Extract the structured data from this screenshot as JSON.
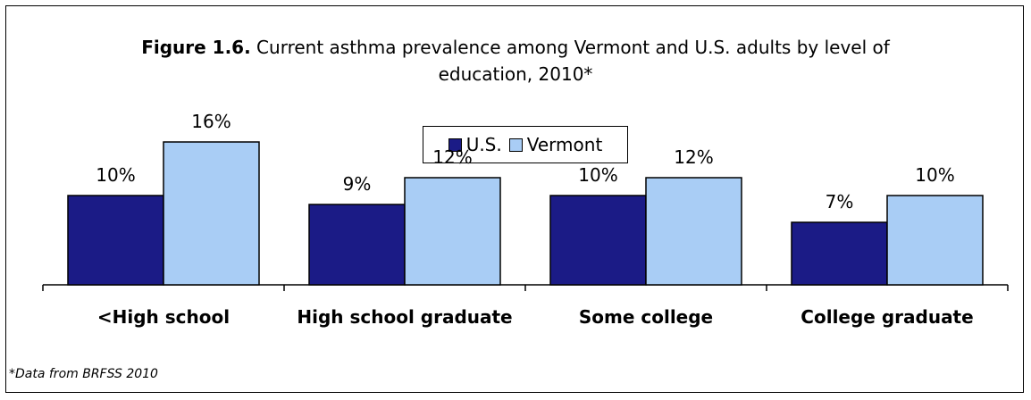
{
  "title": {
    "bold": "Figure 1.6.",
    "line1": " Current asthma prevalence among Vermont and U.S. adults by level of",
    "line2": "education, 2010*"
  },
  "footnote": "*Data from BRFSS 2010",
  "colors": {
    "us": "#1b1b86",
    "vermont": "#a9cdf5",
    "axis": "#000000"
  },
  "chart_data": {
    "type": "bar",
    "categories": [
      "<High school",
      "High school graduate",
      "Some college",
      "College graduate"
    ],
    "series": [
      {
        "name": "U.S.",
        "values": [
          10,
          9,
          10,
          7
        ],
        "labels": [
          "10%",
          "9%",
          "10%",
          "7%"
        ]
      },
      {
        "name": "Vermont",
        "values": [
          16,
          12,
          12,
          10
        ],
        "labels": [
          "16%",
          "12%",
          "12%",
          "10%"
        ]
      }
    ],
    "ylim": [
      0,
      30
    ],
    "legend": "top-center",
    "grid": false
  }
}
